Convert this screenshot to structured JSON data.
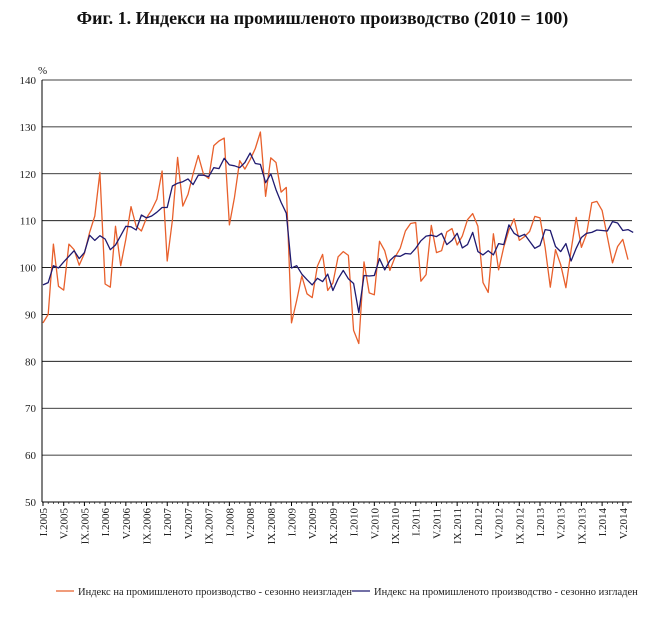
{
  "chart_data": {
    "type": "line",
    "title": "Фиг. 1. Индекси на промишленото производство (2010 = 100)",
    "ylabel": "%",
    "ylim": [
      50,
      140
    ],
    "yticks": [
      50,
      60,
      70,
      80,
      90,
      100,
      110,
      120,
      130,
      140
    ],
    "grid": true,
    "legend_position": "bottom",
    "x_start": "2005-01",
    "x_tick_labels": [
      "I.2005",
      "V.2005",
      "IX.2005",
      "I.2006",
      "V.2006",
      "IX.2006",
      "I.2007",
      "V.2007",
      "IX.2007",
      "I.2008",
      "V.2008",
      "IX.2008",
      "I.2009",
      "V.2009",
      "IX.2009",
      "I.2010",
      "V.2010",
      "IX.2010",
      "I.2011",
      "V.2011",
      "IX.2011",
      "I.2012",
      "V.2012",
      "IX.2012",
      "I.2013",
      "V.2013",
      "IX.2013",
      "I.2014",
      "V.2014"
    ],
    "series": [
      {
        "name": "Индекс на промишленото производство - сезонно  неизгладен",
        "color": "#e8602c",
        "values": [
          88.2,
          90.0,
          105.0,
          96.0,
          95.2,
          105.0,
          103.8,
          100.5,
          103.0,
          107.5,
          111.0,
          120.3,
          96.5,
          95.8,
          108.8,
          100.4,
          106.0,
          113.0,
          108.8,
          107.8,
          110.6,
          112.3,
          114.6,
          120.6,
          101.4,
          110.1,
          123.5,
          113.1,
          115.6,
          120.0,
          123.9,
          119.9,
          119.0,
          126.0,
          127.0,
          127.6,
          109.1,
          115.0,
          122.8,
          121.0,
          123.0,
          125.4,
          128.9,
          115.2,
          123.4,
          122.4,
          116.1,
          117.1,
          88.2,
          93.0,
          98.2,
          94.4,
          93.6,
          100.3,
          102.8,
          95.1,
          96.7,
          102.3,
          103.4,
          102.6,
          86.6,
          83.8,
          101.2,
          94.6,
          94.2,
          105.6,
          103.6,
          99.4,
          102.2,
          104.1,
          107.8,
          109.4,
          109.6,
          97.1,
          98.5,
          109.0,
          103.2,
          103.6,
          107.6,
          108.3,
          104.8,
          106.7,
          110.2,
          111.5,
          108.8,
          96.8,
          94.7,
          107.2,
          99.5,
          104.4,
          108.0,
          110.4,
          105.8,
          106.6,
          107.7,
          110.9,
          110.6,
          104.2,
          95.8,
          103.8,
          100.6,
          95.7,
          103.7,
          110.7,
          104.3,
          107.2,
          113.8,
          114.1,
          112.2,
          106.6,
          101.0,
          104.5,
          106.0,
          101.7
        ]
      },
      {
        "name": "Индекс на промишленото производство - сезонно изгладен",
        "color": "#1f1a70",
        "values": [
          96.3,
          96.8,
          100.4,
          99.9,
          101.2,
          102.4,
          103.6,
          101.9,
          103.2,
          106.9,
          105.8,
          106.8,
          106.1,
          103.8,
          104.8,
          106.8,
          108.8,
          108.7,
          108.0,
          111.2,
          110.6,
          111.0,
          111.8,
          112.8,
          112.8,
          117.4,
          118.0,
          118.3,
          118.9,
          117.7,
          119.7,
          119.7,
          119.4,
          121.3,
          121.1,
          123.3,
          121.9,
          121.7,
          121.3,
          122.4,
          124.4,
          122.2,
          122.0,
          118.1,
          120.0,
          116.6,
          113.9,
          111.6,
          99.9,
          100.4,
          98.6,
          97.4,
          96.3,
          97.7,
          97.0,
          98.6,
          95.1,
          97.6,
          99.4,
          97.6,
          96.6,
          90.4,
          98.3,
          98.2,
          98.3,
          101.9,
          99.5,
          101.5,
          102.5,
          102.4,
          103.0,
          102.9,
          104.1,
          105.7,
          106.7,
          106.9,
          106.6,
          107.3,
          104.9,
          105.8,
          107.3,
          104.2,
          104.9,
          107.5,
          103.4,
          102.7,
          103.6,
          102.7,
          105.1,
          104.9,
          109.1,
          107.3,
          106.6,
          107.1,
          105.6,
          104.1,
          104.7,
          108.1,
          107.9,
          104.5,
          103.4,
          105.1,
          101.4,
          104.1,
          106.4,
          107.3,
          107.5,
          108.0,
          107.9,
          107.8,
          109.8,
          109.5,
          107.9,
          108.1,
          107.5
        ]
      }
    ]
  }
}
